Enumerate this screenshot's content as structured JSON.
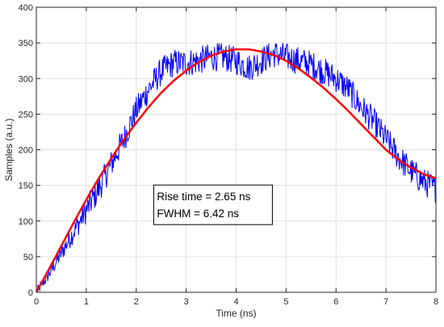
{
  "chart_data": {
    "type": "line",
    "title": "",
    "xlabel": "Time (ns)",
    "ylabel": "Samples (a.u.)",
    "xlim": [
      0,
      8
    ],
    "ylim": [
      0,
      400
    ],
    "x_ticks": [
      "0",
      "1",
      "2",
      "3",
      "4",
      "5",
      "6",
      "7",
      "8"
    ],
    "y_ticks": [
      "0",
      "50",
      "100",
      "150",
      "200",
      "250",
      "300",
      "350",
      "400"
    ],
    "grid": true,
    "legend": "none",
    "colors": {
      "samples": "#0000ff",
      "fit": "#ff0000",
      "grid": "#e0e0e0",
      "axis": "#262626"
    },
    "series": [
      {
        "role": "samples",
        "style": "noisy-line",
        "x": [
          0,
          0.25,
          0.5,
          0.75,
          1.0,
          1.25,
          1.5,
          1.75,
          2.0,
          2.25,
          2.5,
          2.75,
          3.0,
          3.25,
          3.5,
          3.75,
          4.0,
          4.25,
          4.5,
          4.75,
          5.0,
          5.25,
          5.5,
          5.75,
          6.0,
          6.25,
          6.5,
          6.75,
          7.0,
          7.25,
          7.5,
          7.75,
          8.0
        ],
        "y": [
          0,
          25,
          55,
          85,
          115,
          145,
          180,
          215,
          255,
          285,
          310,
          322,
          322,
          325,
          330,
          330,
          325,
          315,
          325,
          335,
          330,
          325,
          320,
          310,
          300,
          285,
          260,
          240,
          215,
          190,
          170,
          155,
          145
        ],
        "noise_amplitude": 25
      },
      {
        "role": "fit",
        "style": "smooth-line",
        "x": [
          0,
          0.25,
          0.5,
          0.75,
          1.0,
          1.25,
          1.5,
          1.75,
          2.0,
          2.25,
          2.5,
          2.75,
          3.0,
          3.25,
          3.5,
          3.75,
          4.0,
          4.25,
          4.5,
          4.75,
          5.0,
          5.25,
          5.5,
          5.75,
          6.0,
          6.25,
          6.5,
          6.75,
          7.0,
          7.25,
          7.5,
          7.75,
          8.0
        ],
        "y": [
          0,
          32,
          65,
          98,
          130,
          160,
          188,
          214,
          238,
          260,
          280,
          297,
          311,
          323,
          332,
          338,
          341,
          341,
          338,
          333,
          325,
          314,
          301,
          287,
          271,
          254,
          236,
          218,
          200,
          186,
          175,
          166,
          160
        ]
      }
    ],
    "annotation": {
      "lines": [
        "Rise time = 2.65 ns",
        "FWHM = 6.42 ns"
      ],
      "anchor_x": 2.35,
      "anchor_y": 95
    }
  }
}
